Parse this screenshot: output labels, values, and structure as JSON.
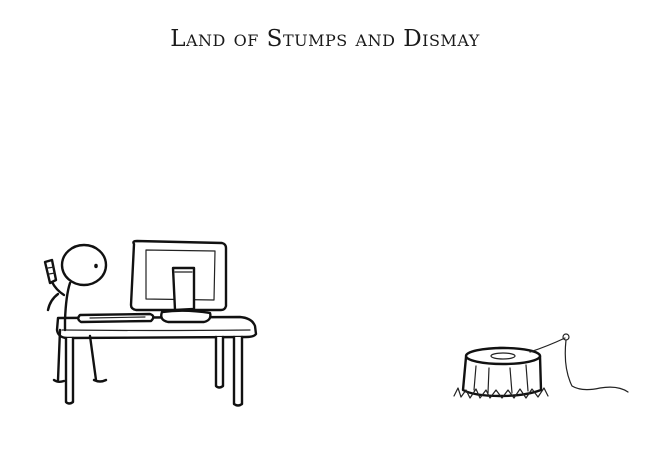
{
  "comic": {
    "title": "Land of Stumps and Dismay"
  }
}
